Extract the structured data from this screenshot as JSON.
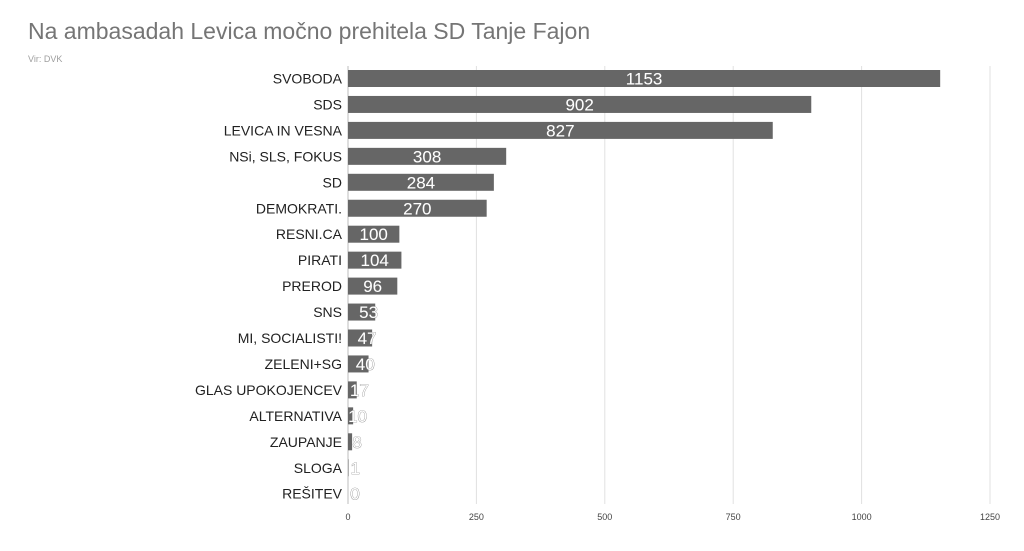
{
  "chart_data": {
    "type": "bar",
    "orientation": "horizontal",
    "title": "Na ambasadah Levica močno prehitela SD Tanje Fajon",
    "subtitle": "Vir: DVK",
    "categories": [
      "SVOBODA",
      "SDS",
      "LEVICA IN VESNA",
      "NSi, SLS, FOKUS",
      "SD",
      "DEMOKRATI.",
      "RESNI.CA",
      "PIRATI",
      "PREROD",
      "SNS",
      "MI, SOCIALISTI!",
      "ZELENI+SG",
      "GLAS UPOKOJENCEV",
      "ALTERNATIVA",
      "ZAUPANJE",
      "SLOGA",
      "REŠITEV"
    ],
    "values": [
      1153,
      902,
      827,
      308,
      284,
      270,
      100,
      104,
      96,
      53,
      47,
      40,
      17,
      10,
      8,
      1,
      0
    ],
    "xlim": [
      0,
      1250
    ],
    "xticks": [
      0,
      250,
      500,
      750,
      1000,
      1250
    ],
    "bar_color": "#666666",
    "grid": true,
    "legend": "none"
  }
}
